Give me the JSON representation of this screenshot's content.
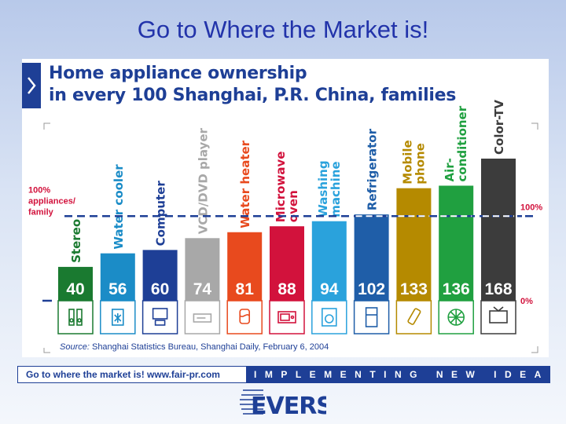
{
  "slide_title": "Go to Where the Market is!",
  "footer": {
    "left_text": "Go to where the market is!   www.fair-pr.com",
    "right_text": "IMPLEMENTING NEW IDEAS",
    "logo_text": "EVERS"
  },
  "chart_data": {
    "type": "bar",
    "title": "Home appliance ownership\nin every 100 Shanghai, P.R. China, families",
    "subtitle": "",
    "xlabel": "",
    "ylabel": "",
    "categories": [
      "Stereo",
      "Water cooler",
      "Computer",
      "VCD/DVD player",
      "Water heater",
      "Microwave oven",
      "Washing machine",
      "Refrigerator",
      "Mobile phone",
      "Air-conditioner",
      "Color-TV"
    ],
    "category_label_lines": [
      [
        "Stereo"
      ],
      [
        "Water cooler"
      ],
      [
        "Computer"
      ],
      [
        "VCD/DVD player"
      ],
      [
        "Water heater"
      ],
      [
        "Microwave",
        "oven"
      ],
      [
        "Washing",
        "machine"
      ],
      [
        "Refrigerator"
      ],
      [
        "Mobile",
        "phone"
      ],
      [
        "Air-",
        "conditioner"
      ],
      [
        "Color-TV"
      ]
    ],
    "values": [
      40,
      56,
      60,
      74,
      81,
      88,
      94,
      102,
      133,
      136,
      168
    ],
    "value_labels": [
      "40",
      "56",
      "60",
      "74",
      "81",
      "88",
      "94",
      "102",
      "133",
      "136",
      "168"
    ],
    "colors": [
      "#1a7a30",
      "#1b8cc7",
      "#1e3f96",
      "#a8a8a8",
      "#e84a1e",
      "#d2123c",
      "#2aa2dc",
      "#1f5ea8",
      "#b58a00",
      "#20a040",
      "#3c3c3c"
    ],
    "icons": [
      "stereo-icon",
      "water-cooler-icon",
      "computer-icon",
      "dvd-player-icon",
      "water-heater-icon",
      "microwave-icon",
      "washing-machine-icon",
      "refrigerator-icon",
      "mobile-phone-icon",
      "air-conditioner-icon",
      "tv-icon"
    ],
    "reference_line": {
      "value": 100,
      "left_label": [
        "100%",
        "appliances/",
        "family"
      ],
      "right_label": "100%"
    },
    "zero_label": "0%",
    "ylim": [
      0,
      168
    ],
    "grid": false,
    "legend": "none",
    "source": {
      "prefix": "Source:",
      "text": " Shanghai Statistics Bureau, Shanghai Daily, February 6, 2004"
    }
  }
}
